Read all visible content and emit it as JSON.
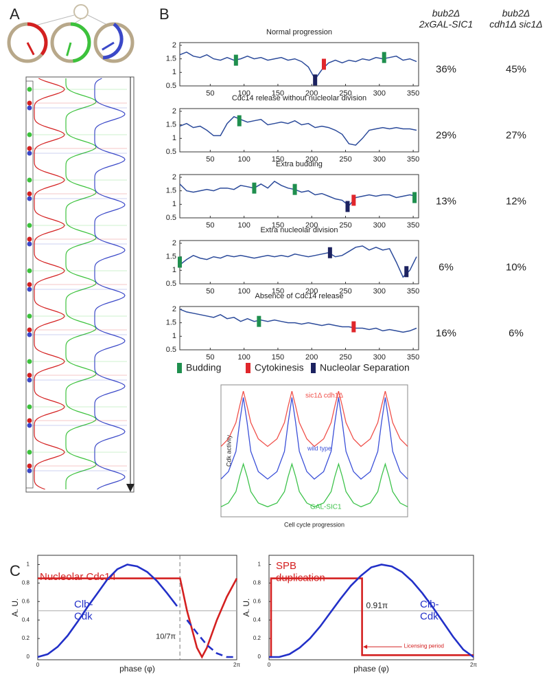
{
  "panel_labels": [
    "A",
    "B",
    "C"
  ],
  "outcome_table": {
    "columns": [
      "bub2Δ\n2xGAL-SIC1",
      "bub2Δ\ncdh1Δ sic1Δ"
    ],
    "rows": [
      [
        "36%",
        "45%"
      ],
      [
        "29%",
        "27%"
      ],
      [
        "13%",
        "12%"
      ],
      [
        "6%",
        "10%"
      ],
      [
        "16%",
        "6%"
      ]
    ]
  },
  "event_legend": [
    {
      "name": "Budding",
      "color": "#1f8f4e"
    },
    {
      "name": "Cytokinesis",
      "color": "#e0262b"
    },
    {
      "name": "Nucleolar Separation",
      "color": "#1c2260"
    }
  ],
  "chart_data": [
    {
      "type": "line",
      "title": "Normal progression",
      "xlim": [
        5,
        358
      ],
      "ylim": [
        0.5,
        2.1
      ],
      "xticks": [
        50,
        100,
        150,
        200,
        250,
        300,
        350
      ],
      "yticks": [
        0.5,
        1,
        1.5,
        2
      ],
      "x": [
        5,
        15,
        25,
        35,
        45,
        55,
        65,
        75,
        85,
        95,
        105,
        115,
        125,
        135,
        145,
        155,
        165,
        175,
        185,
        195,
        205,
        215,
        225,
        235,
        245,
        255,
        265,
        275,
        285,
        295,
        305,
        315,
        325,
        335,
        345,
        355
      ],
      "series": [
        {
          "color": "#2b4a9a",
          "values": [
            1.65,
            1.75,
            1.6,
            1.55,
            1.65,
            1.5,
            1.45,
            1.55,
            1.45,
            1.5,
            1.6,
            1.5,
            1.55,
            1.45,
            1.5,
            1.55,
            1.45,
            1.5,
            1.4,
            1.2,
            0.75,
            1.1,
            1.35,
            1.45,
            1.35,
            1.45,
            1.4,
            1.5,
            1.45,
            1.55,
            1.5,
            1.55,
            1.6,
            1.45,
            1.5,
            1.4
          ]
        }
      ],
      "events": [
        {
          "x": [
            88,
            307
          ],
          "y": [
            1.45,
            1.55
          ]
        },
        {
          "x": [
            218
          ],
          "y": [
            1.3
          ]
        },
        {
          "x": [
            205
          ],
          "y": [
            0.72
          ]
        }
      ]
    },
    {
      "type": "line",
      "title": "Cdc14 release without nucleolar division",
      "xlim": [
        5,
        358
      ],
      "ylim": [
        0.5,
        2.1
      ],
      "xticks": [
        50,
        100,
        150,
        200,
        250,
        300,
        350
      ],
      "yticks": [
        0.5,
        1,
        1.5,
        2
      ],
      "x": [
        5,
        15,
        25,
        35,
        45,
        55,
        65,
        75,
        85,
        95,
        105,
        115,
        125,
        135,
        145,
        155,
        165,
        175,
        185,
        195,
        205,
        215,
        225,
        235,
        245,
        255,
        265,
        275,
        285,
        295,
        305,
        315,
        325,
        335,
        345,
        355
      ],
      "series": [
        {
          "color": "#2b4a9a",
          "values": [
            1.45,
            1.55,
            1.4,
            1.45,
            1.3,
            1.1,
            1.1,
            1.55,
            1.8,
            1.7,
            1.6,
            1.65,
            1.7,
            1.5,
            1.55,
            1.6,
            1.55,
            1.65,
            1.5,
            1.55,
            1.4,
            1.45,
            1.4,
            1.3,
            1.15,
            0.8,
            0.75,
            1.0,
            1.3,
            1.35,
            1.4,
            1.35,
            1.4,
            1.35,
            1.35,
            1.3
          ]
        }
      ],
      "events": [
        {
          "x": [
            93
          ],
          "y": [
            1.65
          ]
        },
        {
          "x": [],
          "y": []
        },
        {
          "x": [],
          "y": []
        }
      ]
    },
    {
      "type": "line",
      "title": "Extra budding",
      "xlim": [
        5,
        358
      ],
      "ylim": [
        0.5,
        2.1
      ],
      "xticks": [
        50,
        100,
        150,
        200,
        250,
        300,
        350
      ],
      "yticks": [
        0.5,
        1,
        1.5,
        2
      ],
      "x": [
        5,
        15,
        25,
        35,
        45,
        55,
        65,
        75,
        85,
        95,
        105,
        115,
        125,
        135,
        145,
        155,
        165,
        175,
        185,
        195,
        205,
        215,
        225,
        235,
        245,
        255,
        265,
        275,
        285,
        295,
        305,
        315,
        325,
        335,
        345,
        355
      ],
      "series": [
        {
          "color": "#2b4a9a",
          "values": [
            1.75,
            1.5,
            1.45,
            1.5,
            1.55,
            1.5,
            1.6,
            1.6,
            1.55,
            1.7,
            1.65,
            1.6,
            1.75,
            1.6,
            1.85,
            1.7,
            1.6,
            1.55,
            1.45,
            1.5,
            1.35,
            1.4,
            1.3,
            1.2,
            1.15,
            0.95,
            1.25,
            1.3,
            1.35,
            1.3,
            1.35,
            1.35,
            1.25,
            1.3,
            1.35,
            1.3
          ]
        }
      ],
      "events": [
        {
          "x": [
            115,
            175,
            352
          ],
          "y": [
            1.6,
            1.55,
            1.25
          ]
        },
        {
          "x": [
            262
          ],
          "y": [
            1.15
          ]
        },
        {
          "x": [
            253
          ],
          "y": [
            0.92
          ]
        }
      ]
    },
    {
      "type": "line",
      "title": "Extra nucleolar division",
      "xlim": [
        5,
        358
      ],
      "ylim": [
        0.5,
        2.1
      ],
      "xticks": [
        50,
        100,
        150,
        200,
        250,
        300,
        350
      ],
      "yticks": [
        0.5,
        1,
        1.5,
        2
      ],
      "x": [
        5,
        15,
        25,
        35,
        45,
        55,
        65,
        75,
        85,
        95,
        105,
        115,
        125,
        135,
        145,
        155,
        165,
        175,
        185,
        195,
        205,
        215,
        225,
        235,
        245,
        255,
        265,
        275,
        285,
        295,
        305,
        315,
        325,
        335,
        345,
        355
      ],
      "series": [
        {
          "color": "#2b4a9a",
          "values": [
            1.2,
            1.4,
            1.55,
            1.45,
            1.4,
            1.5,
            1.45,
            1.55,
            1.5,
            1.55,
            1.5,
            1.45,
            1.5,
            1.55,
            1.5,
            1.55,
            1.5,
            1.6,
            1.55,
            1.5,
            1.55,
            1.6,
            1.65,
            1.5,
            1.55,
            1.7,
            1.85,
            1.9,
            1.75,
            1.85,
            1.75,
            1.8,
            1.3,
            0.75,
            1.0,
            1.5
          ]
        }
      ],
      "events": [
        {
          "x": [
            5
          ],
          "y": [
            1.3
          ]
        },
        {
          "x": [],
          "y": []
        },
        {
          "x": [
            227,
            340
          ],
          "y": [
            1.65,
            0.95
          ]
        }
      ]
    },
    {
      "type": "line",
      "title": "Absence of Cdc14 release",
      "xlim": [
        5,
        358
      ],
      "ylim": [
        0.5,
        2.1
      ],
      "xticks": [
        50,
        100,
        150,
        200,
        250,
        300,
        350
      ],
      "yticks": [
        0.5,
        1,
        1.5,
        2
      ],
      "x": [
        5,
        15,
        25,
        35,
        45,
        55,
        65,
        75,
        85,
        95,
        105,
        115,
        125,
        135,
        145,
        155,
        165,
        175,
        185,
        195,
        205,
        215,
        225,
        235,
        245,
        255,
        265,
        275,
        285,
        295,
        305,
        315,
        325,
        335,
        345,
        355
      ],
      "series": [
        {
          "color": "#2b4a9a",
          "values": [
            2.0,
            1.9,
            1.85,
            1.8,
            1.75,
            1.7,
            1.8,
            1.65,
            1.7,
            1.55,
            1.65,
            1.55,
            1.6,
            1.55,
            1.6,
            1.55,
            1.5,
            1.5,
            1.45,
            1.5,
            1.45,
            1.4,
            1.45,
            1.4,
            1.35,
            1.35,
            1.3,
            1.3,
            1.25,
            1.3,
            1.2,
            1.25,
            1.2,
            1.15,
            1.2,
            1.3
          ]
        }
      ],
      "events": [
        {
          "x": [
            122
          ],
          "y": [
            1.55
          ]
        },
        {
          "x": [
            262
          ],
          "y": [
            1.35
          ]
        },
        {
          "x": [],
          "y": []
        }
      ]
    },
    {
      "type": "line",
      "xlabel": "Cell cycle progression",
      "ylabel": "Cdk activity",
      "xlim": [
        0,
        100
      ],
      "ylim": [
        0,
        1.05
      ],
      "x": [
        0,
        4,
        8,
        10,
        12,
        14,
        16,
        20,
        25,
        30,
        34,
        36,
        38,
        40,
        42,
        46,
        50,
        55,
        59,
        61,
        63,
        65,
        67,
        71,
        75,
        80,
        84,
        86,
        88,
        90,
        92,
        96,
        100
      ],
      "series": [
        {
          "name": "sic1Δ cdh1Δ",
          "color": "#f0504a",
          "values": [
            0.56,
            0.62,
            0.75,
            0.88,
            1.0,
            0.88,
            0.75,
            0.62,
            0.56,
            0.62,
            0.75,
            0.88,
            1.0,
            0.88,
            0.75,
            0.62,
            0.56,
            0.62,
            0.75,
            0.88,
            1.0,
            0.88,
            0.75,
            0.62,
            0.56,
            0.62,
            0.75,
            0.88,
            1.0,
            0.88,
            0.75,
            0.62,
            0.56
          ]
        },
        {
          "name": "wild type",
          "color": "#3a4fd8",
          "values": [
            0.3,
            0.36,
            0.52,
            0.75,
            0.95,
            0.75,
            0.52,
            0.36,
            0.3,
            0.36,
            0.52,
            0.75,
            0.95,
            0.75,
            0.52,
            0.36,
            0.3,
            0.36,
            0.52,
            0.75,
            0.95,
            0.75,
            0.52,
            0.36,
            0.3,
            0.36,
            0.52,
            0.75,
            0.95,
            0.75,
            0.52,
            0.36,
            0.3
          ]
        },
        {
          "name": "GAL-SIC1",
          "color": "#3cc24a",
          "values": [
            0.08,
            0.11,
            0.2,
            0.32,
            0.42,
            0.32,
            0.2,
            0.11,
            0.08,
            0.11,
            0.2,
            0.32,
            0.42,
            0.32,
            0.2,
            0.11,
            0.08,
            0.11,
            0.2,
            0.32,
            0.42,
            0.32,
            0.2,
            0.11,
            0.08,
            0.11,
            0.2,
            0.32,
            0.42,
            0.32,
            0.2,
            0.11,
            0.08
          ]
        }
      ]
    },
    {
      "type": "line",
      "xlabel": "phase (φ)",
      "ylabel": "A. U.",
      "xlim": [
        0,
        2
      ],
      "ylim": [
        -0.03,
        1.1
      ],
      "xticks": [
        0,
        {
          "value": 2,
          "label": "2π"
        }
      ],
      "yticks": [
        0,
        0.2,
        0.4,
        0.6,
        0.8,
        1
      ],
      "hline": 0.5,
      "vline": {
        "x": 1.4286,
        "label": "10/7π"
      },
      "series": [
        {
          "name": "Nucleolar Cdc14",
          "color": "#d42020",
          "x": [
            0,
            1.43,
            1.5,
            1.55,
            1.6,
            1.65,
            1.7,
            1.8,
            1.9,
            2.0
          ],
          "values": [
            0.85,
            0.85,
            0.5,
            0.3,
            0.1,
            0.0,
            0.1,
            0.4,
            0.65,
            0.85
          ]
        },
        {
          "name": "Clb-\nCdk",
          "color": "#2230c8",
          "dashed_after_vline": true,
          "x": [
            0,
            0.1,
            0.2,
            0.3,
            0.4,
            0.5,
            0.6,
            0.7,
            0.8,
            0.9,
            1.0,
            1.1,
            1.2,
            1.3,
            1.4,
            1.5,
            1.6,
            1.7,
            1.8,
            1.9,
            2.0
          ],
          "values": [
            0,
            0.03,
            0.11,
            0.23,
            0.38,
            0.54,
            0.69,
            0.84,
            0.95,
            1.0,
            0.98,
            0.92,
            0.82,
            0.69,
            0.55,
            0.4,
            0.26,
            0.13,
            0.04,
            0.0,
            0.0
          ]
        }
      ]
    },
    {
      "type": "line",
      "xlabel": "phase (φ)",
      "ylabel": "A. U.",
      "xlim": [
        0,
        2
      ],
      "ylim": [
        -0.03,
        1.1
      ],
      "xticks": [
        0,
        {
          "value": 2,
          "label": "2π"
        }
      ],
      "yticks": [
        0,
        0.2,
        0.4,
        0.6,
        0.8,
        1
      ],
      "hline": 0.5,
      "annotations": [
        "0.91π",
        "Licensing period"
      ],
      "series": [
        {
          "name": "SPB\nduplication",
          "color": "#d42020",
          "x": [
            0,
            0.02,
            0.02,
            0.91,
            0.91,
            2.0
          ],
          "values": [
            0,
            0,
            0.85,
            0.85,
            0.02,
            0.02
          ]
        },
        {
          "name": "Clb-\nCdk",
          "color": "#2230c8",
          "x": [
            0,
            0.1,
            0.2,
            0.3,
            0.4,
            0.5,
            0.6,
            0.7,
            0.8,
            0.9,
            1.0,
            1.1,
            1.2,
            1.3,
            1.4,
            1.5,
            1.6,
            1.7,
            1.8,
            1.9,
            2.0
          ],
          "values": [
            0,
            0,
            0.03,
            0.1,
            0.2,
            0.33,
            0.48,
            0.63,
            0.77,
            0.88,
            0.97,
            1.0,
            0.98,
            0.92,
            0.82,
            0.69,
            0.54,
            0.38,
            0.22,
            0.08,
            0.0
          ]
        }
      ]
    }
  ]
}
